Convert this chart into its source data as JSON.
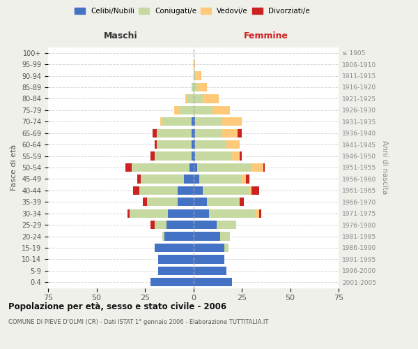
{
  "age_groups": [
    "0-4",
    "5-9",
    "10-14",
    "15-19",
    "20-24",
    "25-29",
    "30-34",
    "35-39",
    "40-44",
    "45-49",
    "50-54",
    "55-59",
    "60-64",
    "65-69",
    "70-74",
    "75-79",
    "80-84",
    "85-89",
    "90-94",
    "95-99",
    "100+"
  ],
  "birth_years": [
    "2001-2005",
    "1996-2000",
    "1991-1995",
    "1986-1990",
    "1981-1985",
    "1976-1980",
    "1971-1975",
    "1966-1970",
    "1961-1965",
    "1956-1960",
    "1951-1955",
    "1946-1950",
    "1941-1945",
    "1936-1940",
    "1931-1935",
    "1926-1930",
    "1921-1925",
    "1916-1920",
    "1911-1915",
    "1906-1910",
    "≤ 1905"
  ],
  "male": {
    "celibi": [
      22,
      18,
      18,
      20,
      15,
      14,
      13,
      8,
      8,
      5,
      2,
      1,
      1,
      1,
      1,
      0,
      0,
      0,
      0,
      0,
      0
    ],
    "coniugati": [
      0,
      0,
      0,
      0,
      1,
      6,
      20,
      16,
      20,
      22,
      30,
      19,
      17,
      18,
      15,
      7,
      3,
      1,
      0,
      0,
      0
    ],
    "vedovi": [
      0,
      0,
      0,
      0,
      0,
      0,
      0,
      0,
      0,
      0,
      0,
      0,
      1,
      0,
      1,
      3,
      1,
      0,
      0,
      0,
      0
    ],
    "divorziati": [
      0,
      0,
      0,
      0,
      0,
      2,
      1,
      2,
      3,
      2,
      3,
      2,
      1,
      2,
      0,
      0,
      0,
      0,
      0,
      0,
      0
    ]
  },
  "female": {
    "nubili": [
      20,
      17,
      16,
      16,
      14,
      12,
      8,
      7,
      5,
      3,
      2,
      1,
      1,
      1,
      1,
      0,
      0,
      0,
      0,
      0,
      0
    ],
    "coniugate": [
      0,
      0,
      0,
      2,
      5,
      10,
      24,
      17,
      24,
      22,
      28,
      19,
      16,
      14,
      14,
      10,
      5,
      2,
      1,
      0,
      0
    ],
    "vedove": [
      0,
      0,
      0,
      0,
      0,
      0,
      2,
      0,
      1,
      2,
      6,
      4,
      7,
      8,
      10,
      9,
      8,
      5,
      3,
      1,
      0
    ],
    "divorziate": [
      0,
      0,
      0,
      0,
      0,
      0,
      1,
      2,
      4,
      2,
      1,
      1,
      0,
      2,
      0,
      0,
      0,
      0,
      0,
      0,
      0
    ]
  },
  "colors": {
    "celibi_nubili": "#4472c4",
    "coniugati": "#c5d9a0",
    "vedovi": "#ffc97a",
    "divorziati": "#cc2222"
  },
  "xlim": 75,
  "title": "Popolazione per età, sesso e stato civile - 2006",
  "subtitle": "COMUNE DI PIEVE D'OLMI (CR) - Dati ISTAT 1° gennaio 2006 - Elaborazione TUTTITALIA.IT",
  "ylabel_left": "Fasce di età",
  "ylabel_right": "Anni di nascita",
  "xlabel_left": "Maschi",
  "xlabel_right": "Femmine",
  "background_color": "#f0f0eb",
  "plot_background": "#ffffff",
  "gridcolor": "#cccccc"
}
